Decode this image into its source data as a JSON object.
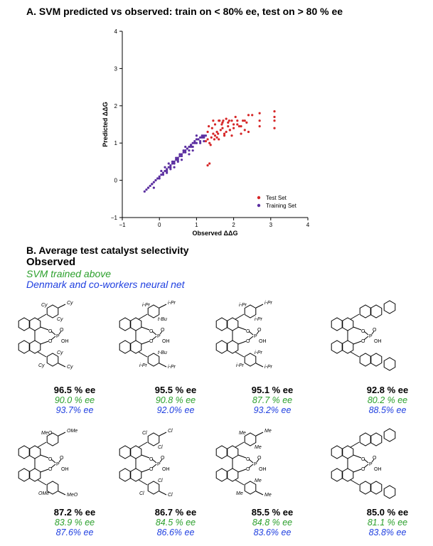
{
  "panel_a": {
    "title": "A.  SVM predicted vs observed: train on < 80% ee, test on > 80 % ee"
  },
  "panel_b": {
    "title": "B.  Average test catalyst selectivity",
    "legend": {
      "observed": "Observed",
      "svm": "SVM trained above",
      "nn": "Denmark and co-workers neural net"
    },
    "catalysts": [
      {
        "observed": "96.5 % ee",
        "svm": "90.0 % ee",
        "nn": "93.7% ee",
        "labels": [
          "Cy",
          "Cy",
          "Cy",
          "Cy",
          "Cy",
          "Cy"
        ]
      },
      {
        "observed": "95.5 % ee",
        "svm": "90.8 % ee",
        "nn": "92.0% ee",
        "labels": [
          "i-Pr",
          "i-Pr",
          "i-Pr",
          "i-Pr",
          "t-Bu",
          "t-Bu"
        ]
      },
      {
        "observed": "95.1 % ee",
        "svm": "87.7 % ee",
        "nn": "93.2% ee",
        "labels": [
          "i-Pr",
          "i-Pr",
          "i-Pr",
          "i-Pr",
          "i-Pr",
          "i-Pr"
        ]
      },
      {
        "observed": "92.8 % ee",
        "svm": "80.2 % ee",
        "nn": "88.5% ee",
        "labels": []
      },
      {
        "observed": "87.2 % ee",
        "svm": "83.9 % ee",
        "nn": "87.6% ee",
        "labels": [
          "MeO",
          "OMe",
          "OMe",
          "MeO"
        ]
      },
      {
        "observed": "86.7 % ee",
        "svm": "84.5 % ee",
        "nn": "86.6% ee",
        "labels": [
          "Cl",
          "Cl",
          "Cl",
          "Cl",
          "Cl",
          "Cl"
        ]
      },
      {
        "observed": "85.5 % ee",
        "svm": "84.8 % ee",
        "nn": "83.6% ee",
        "labels": [
          "Me",
          "Me",
          "Me",
          "Me",
          "Me",
          "Me"
        ]
      },
      {
        "observed": "85.0 % ee",
        "svm": "81.1 % ee",
        "nn": "83.8% ee",
        "labels": []
      }
    ],
    "phosphate": {
      "P": "P",
      "O": "O",
      "OH": "OH"
    }
  },
  "chart_data": {
    "type": "scatter",
    "title": "",
    "xlabel": "Observed ΔΔG",
    "ylabel": "Predicted ΔΔG",
    "xlim": [
      -1,
      4
    ],
    "ylim": [
      -1,
      4
    ],
    "xticks": [
      "−1",
      "0",
      "1",
      "2",
      "3",
      "4"
    ],
    "yticks": [
      "−1",
      "0",
      "1",
      "2",
      "3",
      "4"
    ],
    "grid": false,
    "legend_position": "bottom-right",
    "colors": {
      "test": "#d62728",
      "train": "#5b2fa0"
    },
    "series": [
      {
        "name": "Test Set",
        "color": "#d62728",
        "x": [
          1.25,
          1.3,
          1.35,
          1.4,
          1.45,
          1.5,
          1.55,
          1.6,
          1.65,
          1.7,
          1.75,
          1.8,
          1.85,
          1.9,
          1.95,
          2.0,
          2.1,
          2.2,
          2.3,
          2.4,
          2.5,
          2.7,
          3.1,
          1.3,
          1.42,
          1.5,
          1.6,
          1.68,
          1.75,
          1.85,
          1.95,
          2.05,
          2.15,
          2.3,
          2.4,
          2.7,
          3.1,
          1.38,
          1.48,
          1.58,
          1.7,
          1.8,
          1.9,
          2.0,
          2.2,
          2.35,
          3.1,
          1.33,
          1.45,
          1.55,
          1.62,
          1.72,
          1.88,
          2.1,
          2.25,
          2.7,
          3.1,
          1.3,
          1.35
        ],
        "y": [
          1.05,
          1.1,
          1.0,
          1.15,
          1.25,
          1.2,
          1.3,
          1.1,
          1.35,
          1.4,
          1.2,
          1.3,
          1.45,
          1.35,
          1.2,
          1.4,
          1.5,
          1.45,
          1.6,
          1.3,
          1.75,
          1.8,
          1.85,
          1.3,
          1.4,
          1.5,
          1.6,
          1.5,
          1.25,
          1.55,
          1.6,
          1.7,
          1.45,
          1.35,
          1.75,
          1.6,
          1.6,
          0.95,
          1.1,
          1.25,
          1.55,
          1.65,
          1.35,
          1.5,
          1.25,
          1.55,
          1.4,
          1.45,
          1.6,
          1.15,
          1.6,
          1.6,
          1.6,
          1.6,
          1.6,
          1.45,
          1.7,
          0.4,
          0.45
        ]
      },
      {
        "name": "Training Set",
        "color": "#5b2fa0",
        "x": [
          -0.4,
          -0.35,
          -0.3,
          -0.25,
          -0.2,
          -0.15,
          -0.1,
          -0.05,
          0.0,
          0.05,
          0.1,
          0.15,
          0.2,
          0.25,
          0.3,
          0.35,
          0.4,
          0.45,
          0.5,
          0.55,
          0.6,
          0.65,
          0.7,
          0.75,
          0.8,
          0.85,
          0.9,
          0.95,
          1.0,
          1.05,
          1.1,
          1.15,
          1.2,
          1.25,
          -0.3,
          -0.2,
          -0.1,
          0.0,
          0.1,
          0.2,
          0.3,
          0.4,
          0.5,
          0.6,
          0.7,
          0.8,
          0.9,
          1.0,
          1.1,
          1.2,
          0.15,
          0.25,
          0.35,
          0.45,
          0.55,
          0.65,
          0.75,
          0.85,
          0.95,
          1.05,
          1.15,
          0.05,
          0.3,
          0.6,
          0.9,
          1.2,
          0.4,
          0.8,
          1.1,
          0.7,
          0.5,
          0.2,
          -0.15,
          0.85,
          1.0
        ],
        "y": [
          -0.3,
          -0.25,
          -0.2,
          -0.15,
          -0.1,
          -0.05,
          0.0,
          0.05,
          0.1,
          0.15,
          0.2,
          0.25,
          0.3,
          0.35,
          0.4,
          0.45,
          0.5,
          0.55,
          0.6,
          0.65,
          0.7,
          0.75,
          0.8,
          0.85,
          0.9,
          0.95,
          1.0,
          1.05,
          1.1,
          1.1,
          1.15,
          1.15,
          1.2,
          1.2,
          -0.2,
          -0.1,
          0.0,
          0.05,
          0.15,
          0.25,
          0.35,
          0.45,
          0.55,
          0.65,
          0.75,
          0.8,
          0.9,
          1.0,
          1.05,
          1.15,
          0.35,
          0.45,
          0.5,
          0.6,
          0.7,
          0.8,
          0.85,
          0.95,
          1.0,
          1.1,
          1.2,
          0.25,
          0.3,
          0.55,
          0.8,
          1.05,
          0.35,
          0.7,
          1.0,
          0.9,
          0.5,
          0.2,
          -0.2,
          0.9,
          1.2
        ]
      }
    ]
  }
}
